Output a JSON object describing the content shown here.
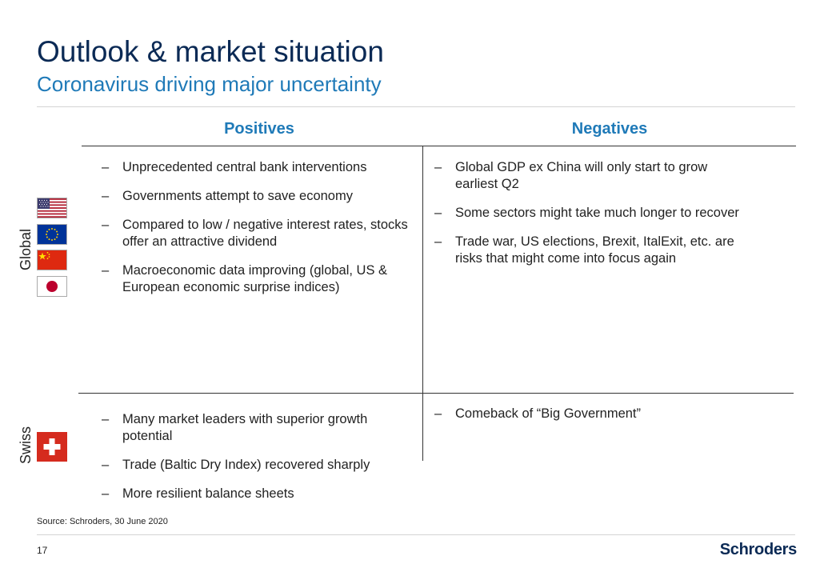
{
  "slide": {
    "title": "Outlook & market situation",
    "subtitle": "Coronavirus driving major uncertainty"
  },
  "columns": {
    "positives": "Positives",
    "negatives": "Negatives"
  },
  "rows": {
    "global": {
      "label": "Global",
      "flags": [
        "us-flag-icon",
        "eu-flag-icon",
        "china-flag-icon",
        "japan-flag-icon"
      ],
      "positives": [
        "Unprecedented central bank interventions",
        "Governments attempt to save economy",
        "Compared to low / negative interest rates, stocks offer an attractive dividend",
        "Macroeconomic data improving (global, US & European economic surprise indices)"
      ],
      "negatives": [
        "Global GDP ex China will only start to grow earliest Q2",
        "Some sectors might take much longer to recover",
        "Trade war, US elections, Brexit, ItalExit, etc. are risks that might come into focus again"
      ]
    },
    "swiss": {
      "label": "Swiss",
      "flags": [
        "switzerland-flag-icon"
      ],
      "positives": [
        "Many market leaders with superior growth potential",
        "Trade (Baltic Dry Index) recovered sharply",
        "More resilient balance sheets"
      ],
      "negatives": [
        "Comeback of “Big Government”"
      ]
    }
  },
  "footer": {
    "source": "Source: Schroders, 30 June 2020",
    "page_number": "17",
    "logo_text": "Schroders"
  },
  "colors": {
    "title": "#0b2a55",
    "accent": "#1f7ab8",
    "flag_red": "#d52b1e"
  }
}
